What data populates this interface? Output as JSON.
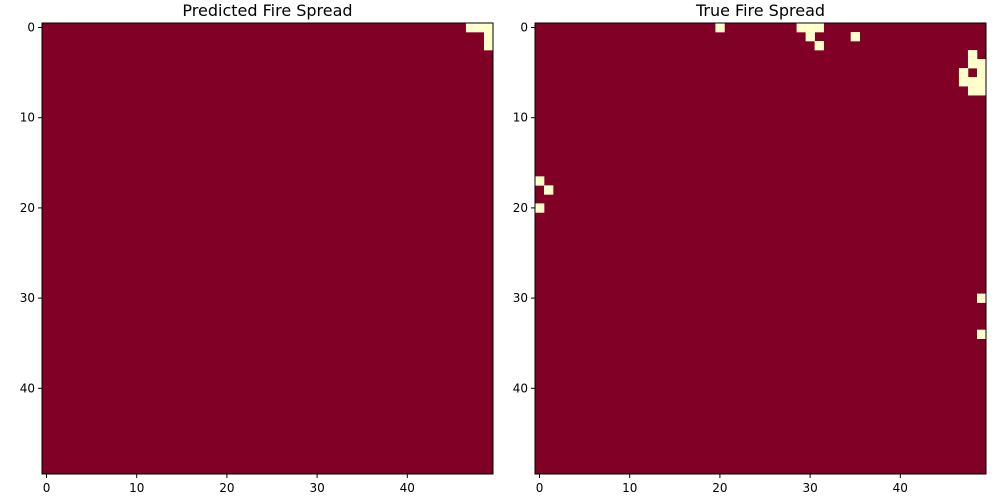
{
  "chart_data": [
    {
      "type": "heatmap",
      "title": "Predicted Fire Spread",
      "xlabel": "",
      "ylabel": "",
      "grid_size": [
        50,
        50
      ],
      "xticks": [
        0,
        10,
        20,
        30,
        40
      ],
      "yticks": [
        0,
        10,
        20,
        30,
        40
      ],
      "grid": false,
      "colors": {
        "background": "#800026",
        "fire": "#ffffcc"
      },
      "fire_cells": [
        [
          47,
          0
        ],
        [
          48,
          0
        ],
        [
          49,
          0
        ],
        [
          49,
          1
        ],
        [
          49,
          2
        ]
      ]
    },
    {
      "type": "heatmap",
      "title": "True Fire Spread",
      "xlabel": "",
      "ylabel": "",
      "grid_size": [
        50,
        50
      ],
      "xticks": [
        0,
        10,
        20,
        30,
        40
      ],
      "yticks": [
        0,
        10,
        20,
        30,
        40
      ],
      "grid": false,
      "colors": {
        "background": "#800026",
        "fire": "#ffffcc"
      },
      "fire_cells": [
        [
          20,
          0
        ],
        [
          29,
          0
        ],
        [
          30,
          0
        ],
        [
          31,
          0
        ],
        [
          30,
          1
        ],
        [
          35,
          1
        ],
        [
          31,
          2
        ],
        [
          48,
          3
        ],
        [
          48,
          4
        ],
        [
          49,
          4
        ],
        [
          47,
          5
        ],
        [
          49,
          5
        ],
        [
          47,
          6
        ],
        [
          48,
          6
        ],
        [
          49,
          6
        ],
        [
          48,
          7
        ],
        [
          49,
          7
        ],
        [
          0,
          17
        ],
        [
          1,
          18
        ],
        [
          0,
          20
        ],
        [
          49,
          30
        ],
        [
          49,
          34
        ]
      ]
    }
  ]
}
